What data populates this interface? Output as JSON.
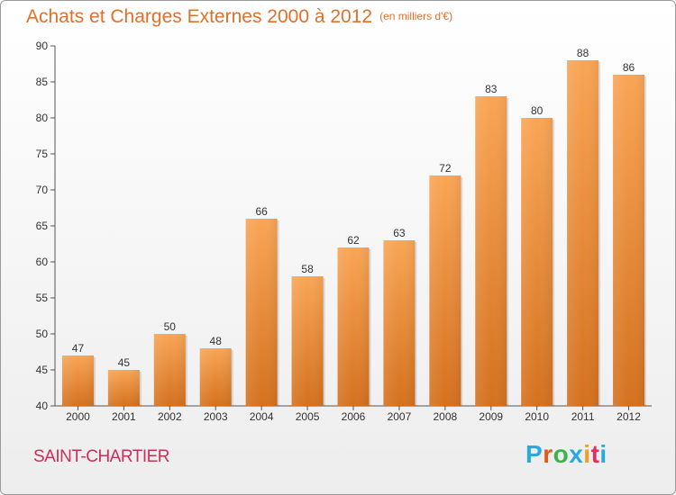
{
  "header": {
    "title": "Achats et Charges Externes 2000 à 2012",
    "unit": "(en milliers d'€)"
  },
  "footer": {
    "commune": "SAINT-CHARTIER",
    "brand_letters": [
      "P",
      "r",
      "o",
      "x",
      "i",
      "t",
      "i"
    ],
    "brand_colors": [
      "#2aa8e0",
      "#e05a1e",
      "#3cb44a",
      "#2aa8e0",
      "#f0a020",
      "#e03060",
      "#2aa8e0"
    ]
  },
  "colors": {
    "bar_top": "#f9a555",
    "bar_bottom": "#d4711f",
    "title": "#e0702a",
    "commune": "#c8305a"
  },
  "chart_data": {
    "type": "bar",
    "title": "Achats et Charges Externes 2000 à 2012",
    "subtitle": "(en milliers d'€)",
    "categories": [
      "2000",
      "2001",
      "2002",
      "2003",
      "2004",
      "2005",
      "2006",
      "2007",
      "2008",
      "2009",
      "2010",
      "2011",
      "2012"
    ],
    "values": [
      47,
      45,
      50,
      48,
      66,
      58,
      62,
      63,
      72,
      83,
      80,
      88,
      86
    ],
    "ylim": [
      40,
      90
    ],
    "yticks": [
      40,
      45,
      50,
      55,
      60,
      65,
      70,
      75,
      80,
      85,
      90
    ],
    "grid": false,
    "data_labels": true
  }
}
